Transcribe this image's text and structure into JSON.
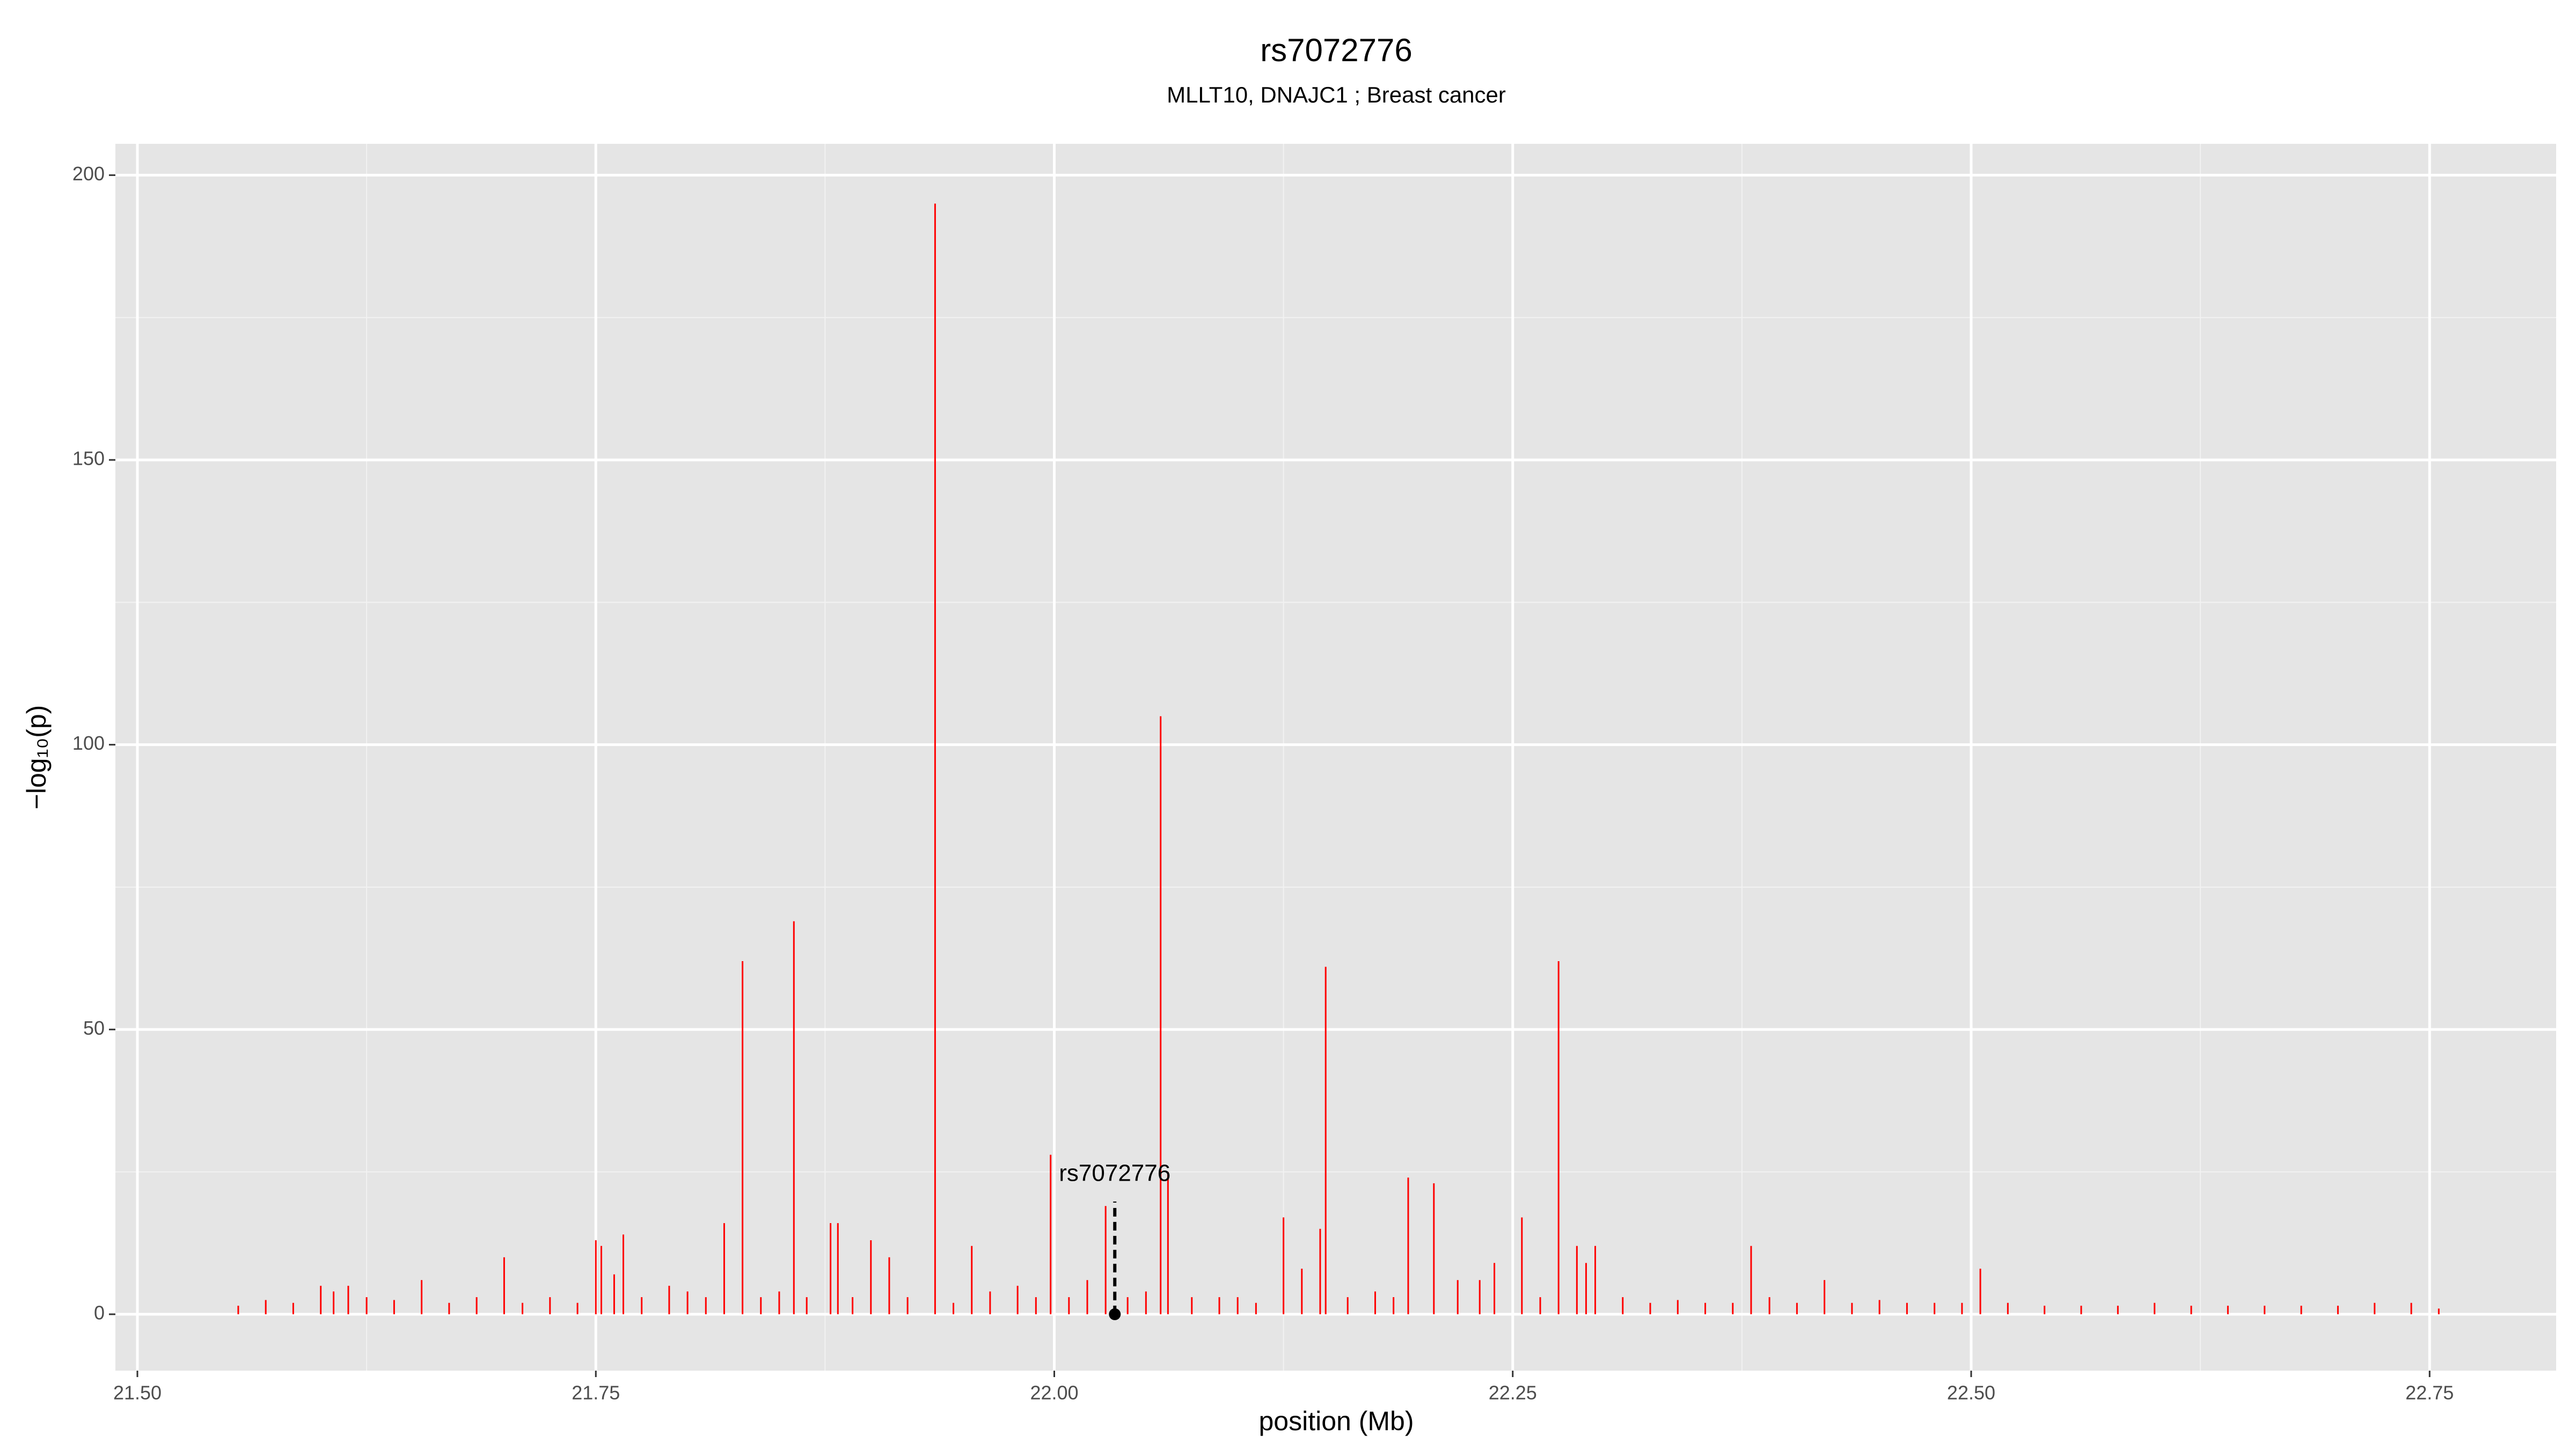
{
  "chart_data": {
    "type": "spike",
    "title": "rs7072776",
    "subtitle": "MLLT10, DNAJC1 ; Breast cancer",
    "x_label": "position (Mb)",
    "y_label": "−log₁₀(p)",
    "xlim": [
      21.488,
      22.819
    ],
    "ylim": [
      -9.9,
      205.5
    ],
    "xticks": [
      {
        "value": 21.5,
        "label": "21.50"
      },
      {
        "value": 21.75,
        "label": "21.75"
      },
      {
        "value": 22,
        "label": "22.00"
      },
      {
        "value": 22.25,
        "label": "22.25"
      },
      {
        "value": 22.5,
        "label": "22.50"
      },
      {
        "value": 22.75,
        "label": "22.75"
      }
    ],
    "yticks": [
      0,
      50,
      100,
      150,
      200
    ],
    "grid": true,
    "series": [
      {
        "color": "#ff0000",
        "x": [
          21.555,
          21.57,
          21.585,
          21.6,
          21.607,
          21.615,
          21.625,
          21.64,
          21.655,
          21.67,
          21.685,
          21.7,
          21.71,
          21.725,
          21.74,
          21.75,
          21.753,
          21.76,
          21.765,
          21.775,
          21.79,
          21.8,
          21.81,
          21.82,
          21.83,
          21.84,
          21.85,
          21.858,
          21.865,
          21.878,
          21.882,
          21.89,
          21.9,
          21.91,
          21.92,
          21.935,
          21.945,
          21.955,
          21.965,
          21.98,
          21.99,
          21.998,
          22.008,
          22.018,
          22.028,
          22.04,
          22.05,
          22.058,
          22.062,
          22.075,
          22.09,
          22.1,
          22.11,
          22.125,
          22.135,
          22.145,
          22.148,
          22.16,
          22.175,
          22.185,
          22.193,
          22.207,
          22.22,
          22.232,
          22.24,
          22.255,
          22.265,
          22.275,
          22.285,
          22.29,
          22.295,
          22.31,
          22.325,
          22.34,
          22.355,
          22.37,
          22.38,
          22.39,
          22.405,
          22.42,
          22.435,
          22.45,
          22.465,
          22.48,
          22.495,
          22.505,
          22.52,
          22.54,
          22.56,
          22.58,
          22.6,
          22.62,
          22.64,
          22.66,
          22.68,
          22.7,
          22.72,
          22.74,
          22.755
        ],
        "values": [
          1.5,
          2.5,
          2,
          5,
          4,
          5,
          3,
          2.5,
          6,
          2,
          3,
          10,
          2,
          3,
          2,
          13,
          12,
          7,
          14,
          3,
          5,
          4,
          3,
          16,
          62,
          3,
          4,
          69,
          3,
          16,
          16,
          3,
          13,
          10,
          3,
          195,
          2,
          12,
          4,
          5,
          3,
          28,
          3,
          6,
          19,
          3,
          4,
          105,
          25,
          3,
          3,
          3,
          2,
          17,
          8,
          15,
          61,
          3,
          4,
          3,
          24,
          23,
          6,
          6,
          9,
          17,
          3,
          62,
          12,
          9,
          12,
          3,
          2,
          2.5,
          2,
          2,
          12,
          3,
          2,
          6,
          2,
          2.5,
          2,
          2,
          2,
          8,
          2,
          1.5,
          1.5,
          1.5,
          2,
          1.5,
          1.5,
          1.5,
          1.5,
          1.5,
          2,
          2,
          1
        ]
      }
    ],
    "annotations": [
      {
        "text": "rs7072776",
        "x": 22.033,
        "y": 0
      }
    ]
  }
}
